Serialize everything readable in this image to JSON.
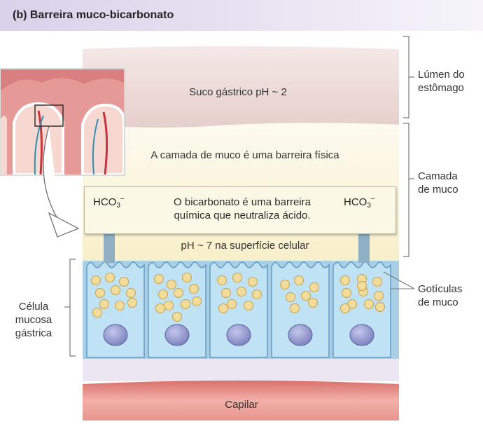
{
  "title": "(b) Barreira muco-bicarbonato",
  "lumen": {
    "text": "Suco gástrico pH ~ 2"
  },
  "mucus": {
    "text": "A camada de muco é uma barreira física"
  },
  "callout": {
    "hco3_base": "HCO",
    "hco3_sub": "3",
    "hco3_sup": "–",
    "line1": "O bicarbonato é uma barreira",
    "line2": "química que neutraliza ácido."
  },
  "surface_ph": "pH ~ 7 na superfície celular",
  "capillary": "Capilar",
  "side_labels": {
    "lumen_line1": "Lúmen do",
    "lumen_line2": "estômago",
    "mucus_line1": "Camada",
    "mucus_line2": "de muco",
    "droplets_line1": "Gotículas",
    "droplets_line2": "de muco",
    "cell_line1": "Célula",
    "cell_line2": "mucosa",
    "cell_line3": "gástrica"
  },
  "colors": {
    "lumen": "#ead4d0",
    "mucus": "#faf4d8",
    "cell": "#bfe2f5",
    "nucleus": "#8a8fc8",
    "droplet": "#f2dc9c",
    "capillary": "#e98d86",
    "arrow": "#8fb0c4"
  }
}
